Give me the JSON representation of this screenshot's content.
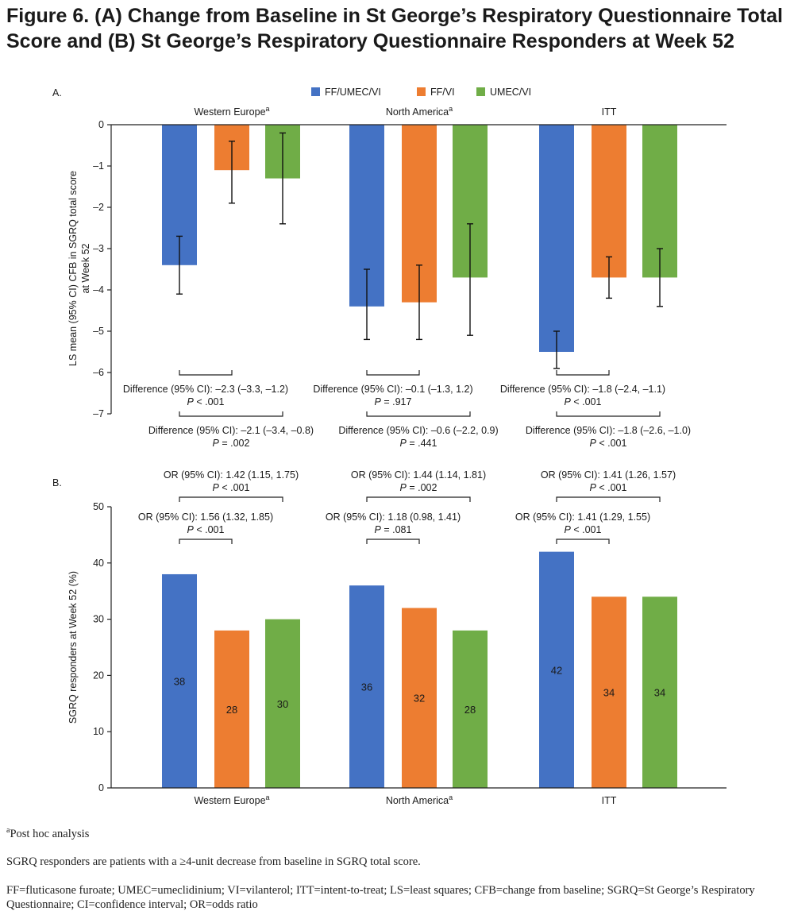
{
  "figure": {
    "title_line1": "Figure 6. (A) Change from Baseline in St George’s Respiratory Questionnaire Total",
    "title_line2": "Score and (B) St George’s Respiratory Questionnaire Responders at Week 52"
  },
  "legend": [
    {
      "name": "FF/UMEC/VI",
      "color": "#4472c4"
    },
    {
      "name": "FF/VI",
      "color": "#ed7d31"
    },
    {
      "name": "UMEC/VI",
      "color": "#70ad47"
    }
  ],
  "chart_data": [
    {
      "type": "bar",
      "panel_label": "A.",
      "ylabel_line1": "LS mean (95% CI) CFB in SGRQ total score",
      "ylabel_line2": "at Week 52",
      "ylim": [
        -7,
        0
      ],
      "yticks": [
        "0",
        "–1",
        "–2",
        "–3",
        "–4",
        "–5",
        "–6",
        "–7"
      ],
      "ytick_values": [
        0,
        -1,
        -2,
        -3,
        -4,
        -5,
        -6,
        -7
      ],
      "groups": [
        {
          "label": "Western Europe",
          "sup": "a"
        },
        {
          "label": "North America",
          "sup": "a"
        },
        {
          "label": "ITT",
          "sup": ""
        }
      ],
      "series": [
        {
          "name": "FF/UMEC/VI",
          "values": [
            -3.4,
            -4.4,
            -5.5
          ],
          "ci_low": [
            -4.1,
            -5.2,
            -5.9
          ],
          "ci_high": [
            -2.7,
            -3.5,
            -5.0
          ]
        },
        {
          "name": "FF/VI",
          "values": [
            -1.1,
            -4.3,
            -3.7
          ],
          "ci_low": [
            -1.9,
            -5.2,
            -4.2
          ],
          "ci_high": [
            -0.4,
            -3.4,
            -3.2
          ]
        },
        {
          "name": "UMEC/VI",
          "values": [
            -1.3,
            -3.7,
            -3.7
          ],
          "ci_low": [
            -2.4,
            -5.1,
            -4.4
          ],
          "ci_high": [
            -0.2,
            -2.4,
            -3.0
          ]
        }
      ],
      "comparisons": [
        {
          "group": 0,
          "from": 0,
          "to": 1,
          "text": "Difference (95% CI): –2.3 (–3.3, –1.2)",
          "p_value": "< .001"
        },
        {
          "group": 0,
          "from": 0,
          "to": 2,
          "text": "Difference (95% CI): –2.1 (–3.4, –0.8)",
          "p_value": "= .002"
        },
        {
          "group": 1,
          "from": 0,
          "to": 1,
          "text": "Difference (95% CI): –0.1 (–1.3, 1.2)",
          "p_value": "= .917"
        },
        {
          "group": 1,
          "from": 0,
          "to": 2,
          "text": "Difference (95% CI): –0.6 (–2.2, 0.9)",
          "p_value": "= .441"
        },
        {
          "group": 2,
          "from": 0,
          "to": 1,
          "text": "Difference (95% CI): –1.8 (–2.4, –1.1)",
          "p_value": "< .001"
        },
        {
          "group": 2,
          "from": 0,
          "to": 2,
          "text": "Difference (95% CI): –1.8 (–2.6, –1.0)",
          "p_value": "< .001"
        }
      ]
    },
    {
      "type": "bar",
      "panel_label": "B.",
      "ylabel": "SGRQ responders at Week 52 (%)",
      "ylim": [
        0,
        50
      ],
      "yticks": [
        "0",
        "10",
        "20",
        "30",
        "40",
        "50"
      ],
      "ytick_values": [
        0,
        10,
        20,
        30,
        40,
        50
      ],
      "groups": [
        {
          "label": "Western Europe",
          "sup": "a"
        },
        {
          "label": "North America",
          "sup": "a"
        },
        {
          "label": "ITT",
          "sup": ""
        }
      ],
      "series": [
        {
          "name": "FF/UMEC/VI",
          "values": [
            38,
            36,
            42
          ],
          "data_labels": [
            "38",
            "36",
            "42"
          ]
        },
        {
          "name": "FF/VI",
          "values": [
            28,
            32,
            34
          ],
          "data_labels": [
            "28",
            "32",
            "34"
          ]
        },
        {
          "name": "UMEC/VI",
          "values": [
            30,
            28,
            34
          ],
          "data_labels": [
            "30",
            "28",
            "34"
          ]
        }
      ],
      "comparisons": [
        {
          "group": 0,
          "from": 0,
          "to": 2,
          "text": "OR (95% CI): 1.42 (1.15, 1.75)",
          "p_value": "< .001"
        },
        {
          "group": 0,
          "from": 0,
          "to": 1,
          "text": "OR (95% CI): 1.56 (1.32, 1.85)",
          "p_value": "< .001"
        },
        {
          "group": 1,
          "from": 0,
          "to": 2,
          "text": "OR (95% CI): 1.44 (1.14, 1.81)",
          "p_value": "= .002"
        },
        {
          "group": 1,
          "from": 0,
          "to": 1,
          "text": "OR (95% CI): 1.18 (0.98, 1.41)",
          "p_value": "= .081"
        },
        {
          "group": 2,
          "from": 0,
          "to": 2,
          "text": "OR (95% CI): 1.41 (1.26, 1.57)",
          "p_value": "< .001"
        },
        {
          "group": 2,
          "from": 0,
          "to": 1,
          "text": "OR (95% CI): 1.41 (1.29, 1.55)",
          "p_value": "< .001"
        }
      ]
    }
  ],
  "p_symbol": "P",
  "footnotes": {
    "a_marker": "a",
    "post_hoc": "Post hoc analysis",
    "responders": "SGRQ responders are patients with a ≥4-unit decrease from baseline in SGRQ total score.",
    "abbreviations": "FF=fluticasone furoate; UMEC=umeclidinium; VI=vilanterol; ITT=intent-to-treat; LS=least squares; CFB=change from baseline; SGRQ=St George’s Respiratory Questionnaire; CI=confidence interval; OR=odds ratio"
  }
}
